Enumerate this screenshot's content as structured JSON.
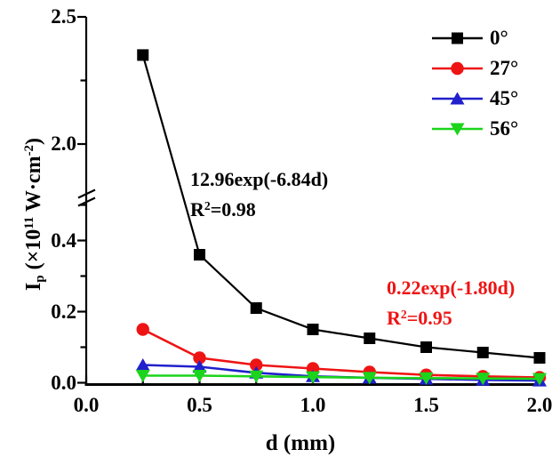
{
  "figure": {
    "background": "#ffffff"
  },
  "chart_data": {
    "type": "line",
    "title": "",
    "x_label": "d (mm)",
    "y_label_plain": "Ip (×10^11 W·cm^-2)",
    "y_label_parts": [
      {
        "t": "I",
        "style": "normal"
      },
      {
        "t": "p",
        "style": "sub"
      },
      {
        "t": " (×10",
        "style": "normal"
      },
      {
        "t": "11",
        "style": "sup"
      },
      {
        "t": " W·cm",
        "style": "normal"
      },
      {
        "t": "-2",
        "style": "sup"
      },
      {
        "t": ")",
        "style": "normal"
      }
    ],
    "x": [
      0.25,
      0.5,
      0.75,
      1.0,
      1.25,
      1.5,
      1.75,
      2.0
    ],
    "x_axis": {
      "range": [
        0.0,
        2.0
      ],
      "major_ticks": [
        {
          "v": 0.0,
          "label": "0.0"
        },
        {
          "v": 0.5,
          "label": "0.5"
        },
        {
          "v": 1.0,
          "label": "1.0"
        },
        {
          "v": 1.5,
          "label": "1.5"
        },
        {
          "v": 2.0,
          "label": "2.0"
        }
      ],
      "minor_ticks": [
        0.25,
        0.75,
        1.25,
        1.75
      ]
    },
    "y_axis": {
      "broken": true,
      "lower_range": [
        0.0,
        0.5
      ],
      "upper_range": [
        1.8,
        2.5
      ],
      "lower_major_ticks": [
        {
          "v": 0.0,
          "label": "0.0"
        },
        {
          "v": 0.2,
          "label": "0.2"
        },
        {
          "v": 0.4,
          "label": "0.4"
        }
      ],
      "lower_minor_ticks": [
        0.1,
        0.3,
        0.5
      ],
      "upper_major_ticks": [
        {
          "v": 2.0,
          "label": "2.0"
        },
        {
          "v": 2.5,
          "label": "2.5"
        }
      ],
      "upper_minor_ticks": [
        2.25
      ]
    },
    "series": [
      {
        "name": "0°",
        "color": "#000000",
        "marker": "square",
        "values": [
          2.35,
          0.36,
          0.21,
          0.15,
          0.125,
          0.1,
          0.085,
          0.07
        ]
      },
      {
        "name": "27°",
        "color": "#ee1414",
        "marker": "circle",
        "values": [
          0.15,
          0.07,
          0.05,
          0.04,
          0.03,
          0.022,
          0.018,
          0.015
        ]
      },
      {
        "name": "45°",
        "color": "#2020cc",
        "marker": "triangle-up",
        "values": [
          0.05,
          0.045,
          0.028,
          0.018,
          0.014,
          0.011,
          0.008,
          0.006
        ]
      },
      {
        "name": "56°",
        "color": "#1bd41b",
        "marker": "triangle-down",
        "values": [
          0.02,
          0.02,
          0.018,
          0.016,
          0.014,
          0.013,
          0.012,
          0.011
        ]
      }
    ],
    "legend": {
      "position": "top-right",
      "entries": [
        "0°",
        "27°",
        "45°",
        "56°"
      ]
    },
    "annotations": [
      {
        "id": "fit-0deg",
        "line1": "12.96exp(-6.84d)",
        "r_base": "R",
        "r_exp": "2",
        "r_eq": "=0.98",
        "color": "#000000"
      },
      {
        "id": "fit-27deg",
        "line1": "0.22exp(-1.80d)",
        "r_base": "R",
        "r_exp": "2",
        "r_eq": "=0.95",
        "color": "#ee1414"
      }
    ],
    "grid": false
  }
}
